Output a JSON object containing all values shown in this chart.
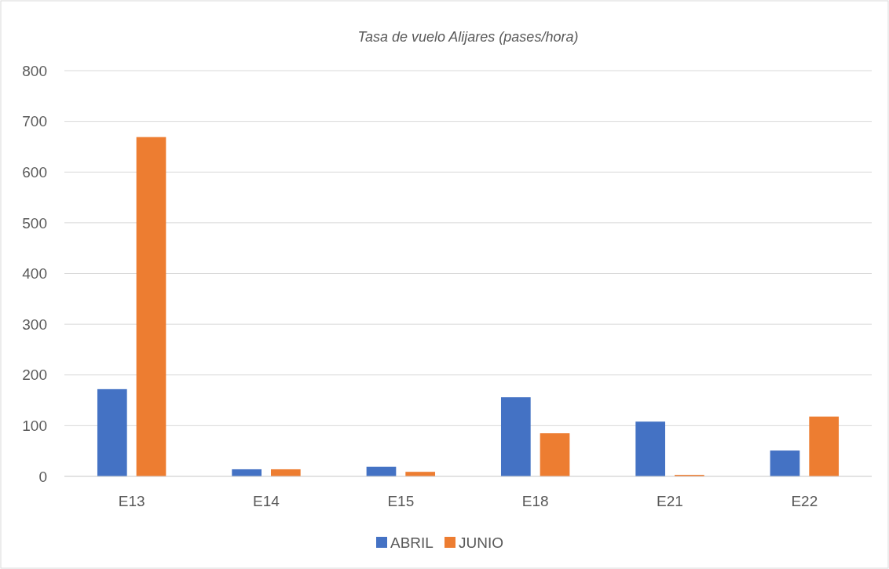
{
  "chart_data": {
    "type": "bar",
    "title": "Tasa de vuelo Alijares (pases/hora)",
    "categories": [
      "E13",
      "E14",
      "E15",
      "E18",
      "E21",
      "E22"
    ],
    "series": [
      {
        "name": "ABRIL",
        "color": "#4472c4",
        "values": [
          172,
          14,
          19,
          156,
          108,
          51
        ]
      },
      {
        "name": "JUNIO",
        "color": "#ed7d31",
        "values": [
          669,
          14,
          9,
          85,
          3,
          118
        ]
      }
    ],
    "ylim": [
      0,
      800
    ],
    "yticks": [
      0,
      100,
      200,
      300,
      400,
      500,
      600,
      700,
      800
    ],
    "grid": "y",
    "legend": "bottom"
  }
}
